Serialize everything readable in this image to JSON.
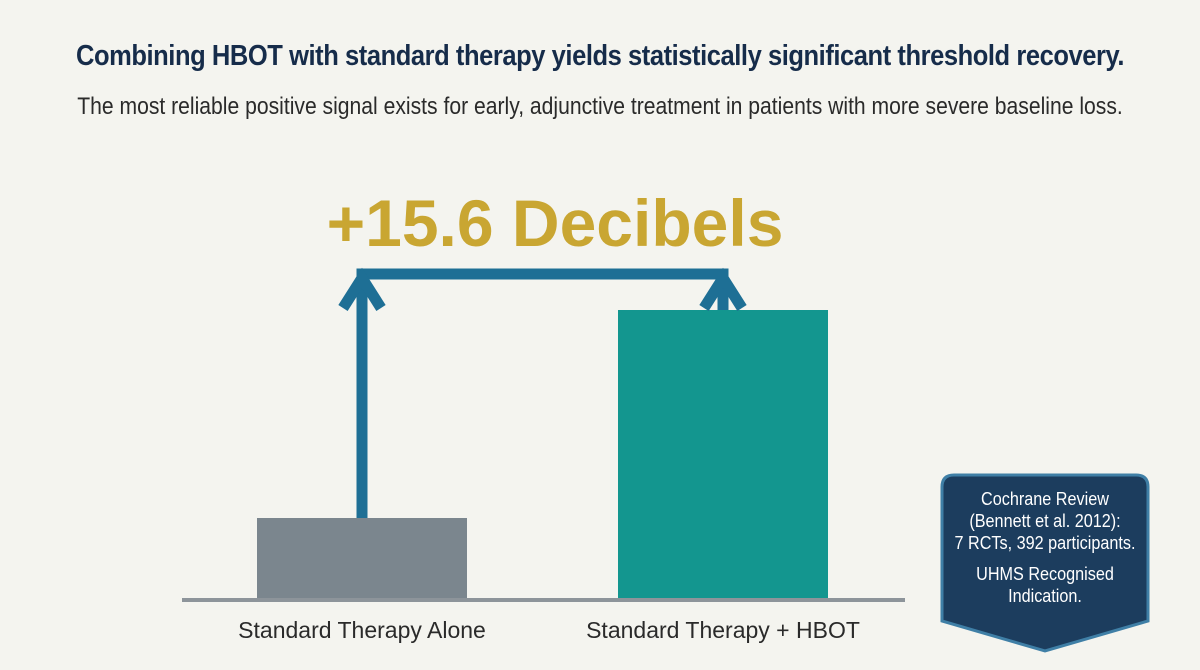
{
  "header": {
    "title": "Combining HBOT with standard therapy yields statistically significant threshold recovery.",
    "subtitle": "The most reliable positive signal exists for early, adjunctive treatment in patients with more severe baseline loss."
  },
  "chart_data": {
    "type": "bar",
    "categories": [
      "Standard Therapy Alone",
      "Standard Therapy + HBOT"
    ],
    "values": [
      6,
      21.6
    ],
    "ylim": [
      0,
      30
    ],
    "difference_label": "+15.6 Decibels",
    "grid": false,
    "colors": [
      "#7b868e",
      "#13968f"
    ],
    "arrow_color": "#1e6f95",
    "label_color": "#c9a632"
  },
  "callout": {
    "line1": "Cochrane Review",
    "line2": "(Bennett et al. 2012):",
    "line3": "7 RCTs, 392 participants.",
    "line4": "UHMS Recognised",
    "line5": "Indication.",
    "color": "#1c3d5e",
    "border_color": "#3f7fa6"
  }
}
